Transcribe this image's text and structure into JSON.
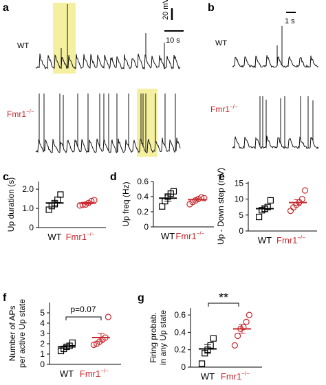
{
  "panels": {
    "a": {
      "label": "a",
      "wt_label": "WT",
      "ko_label": "Fmr1",
      "ko_sup": "−/−",
      "scale_v": "20 mV",
      "scale_t": "10 s"
    },
    "b": {
      "label": "b",
      "wt_label": "WT",
      "ko_label": "Fmr1",
      "ko_sup": "−/−",
      "scale_t": "1 s"
    },
    "c": {
      "label": "c"
    },
    "d": {
      "label": "d"
    },
    "e": {
      "label": "e"
    },
    "f": {
      "label": "f",
      "annotation": "p=0.07"
    },
    "g": {
      "label": "g",
      "annotation": "**"
    }
  },
  "colors": {
    "wt": "#000000",
    "ko": "#c8282d",
    "highlight": "#f5f0a0"
  },
  "chart_data": [
    {
      "id": "c",
      "type": "scatter",
      "ylabel": "Up duration (s)",
      "ylim": [
        0,
        2.4
      ],
      "yticks": [
        0,
        1.0,
        2.0
      ],
      "ytick_labels": [
        "0",
        "1.0",
        "2.0"
      ],
      "categories": [
        "WT",
        "Fmr1"
      ],
      "category_sup": [
        "",
        "−/−"
      ],
      "series": [
        {
          "marker": "square",
          "color": "#000000",
          "values": [
            0.93,
            1.12,
            1.22,
            1.45,
            1.72
          ],
          "mean": 1.28,
          "sem": 0.14
        },
        {
          "marker": "circle",
          "color": "#c8282d",
          "values": [
            1.15,
            1.18,
            1.2,
            1.28,
            1.38,
            1.43
          ],
          "mean": 1.27,
          "sem": 0.05
        }
      ]
    },
    {
      "id": "d",
      "type": "scatter",
      "ylabel": "Up freq (Hz)",
      "ylim": [
        0,
        0.6
      ],
      "yticks": [
        0,
        0.2,
        0.4,
        0.6
      ],
      "ytick_labels": [
        "0",
        "0.2",
        "0.4",
        "0.6"
      ],
      "categories": [
        "WT",
        "Fmr1"
      ],
      "category_sup": [
        "",
        "−/−"
      ],
      "series": [
        {
          "marker": "square",
          "color": "#000000",
          "values": [
            0.27,
            0.34,
            0.4,
            0.44,
            0.47
          ],
          "mean": 0.38,
          "sem": 0.04
        },
        {
          "marker": "circle",
          "color": "#c8282d",
          "values": [
            0.3,
            0.33,
            0.35,
            0.37,
            0.39,
            0.38
          ],
          "mean": 0.36,
          "sem": 0.02
        }
      ]
    },
    {
      "id": "e",
      "type": "scatter",
      "ylabel": "Up - Down step (mV)",
      "ylim": [
        0,
        15.5
      ],
      "yticks": [
        0,
        5,
        10,
        15
      ],
      "ytick_labels": [
        "0",
        "5",
        "10",
        "15"
      ],
      "categories": [
        "WT",
        "Fmr1"
      ],
      "category_sup": [
        "",
        "−/−"
      ],
      "series": [
        {
          "marker": "square",
          "color": "#000000",
          "values": [
            4.4,
            6.5,
            6.9,
            7.5,
            9.6
          ],
          "mean": 7.0,
          "sem": 0.9
        },
        {
          "marker": "circle",
          "color": "#c8282d",
          "values": [
            6.3,
            7.4,
            8.2,
            9.0,
            10.0,
            12.7
          ],
          "mean": 8.9,
          "sem": 0.9
        }
      ]
    },
    {
      "id": "f",
      "type": "scatter",
      "ylabel": "Number of APs per active Up state",
      "ylim": [
        0,
        6
      ],
      "yticks": [
        0,
        1,
        2,
        3,
        4,
        5
      ],
      "ytick_labels": [
        "0",
        "1",
        "2",
        "3",
        "4",
        "5"
      ],
      "categories": [
        "WT",
        "Fmr1"
      ],
      "category_sup": [
        "",
        "−/−"
      ],
      "series": [
        {
          "marker": "square",
          "color": "#000000",
          "values": [
            1.3,
            1.5,
            1.7,
            1.8,
            2.1
          ],
          "mean": 1.7,
          "sem": 0.15
        },
        {
          "marker": "circle",
          "color": "#c8282d",
          "values": [
            1.9,
            2.0,
            2.2,
            2.4,
            2.6,
            4.6
          ],
          "mean": 2.6,
          "sem": 0.4
        }
      ]
    },
    {
      "id": "g",
      "type": "scatter",
      "ylabel": "Firing probab. in any Up state",
      "ylim": [
        0,
        0.68
      ],
      "yticks": [
        0,
        0.2,
        0.4,
        0.6
      ],
      "ytick_labels": [
        "0",
        "0.2",
        "0.4",
        "0.6"
      ],
      "categories": [
        "WT",
        "Fmr1"
      ],
      "category_sup": [
        "",
        "−/−"
      ],
      "series": [
        {
          "marker": "square",
          "color": "#000000",
          "values": [
            0.04,
            0.16,
            0.2,
            0.25,
            0.33
          ],
          "mean": 0.21,
          "sem": 0.05
        },
        {
          "marker": "circle",
          "color": "#c8282d",
          "values": [
            0.25,
            0.36,
            0.44,
            0.46,
            0.52,
            0.6
          ],
          "mean": 0.44,
          "sem": 0.05
        }
      ]
    }
  ]
}
